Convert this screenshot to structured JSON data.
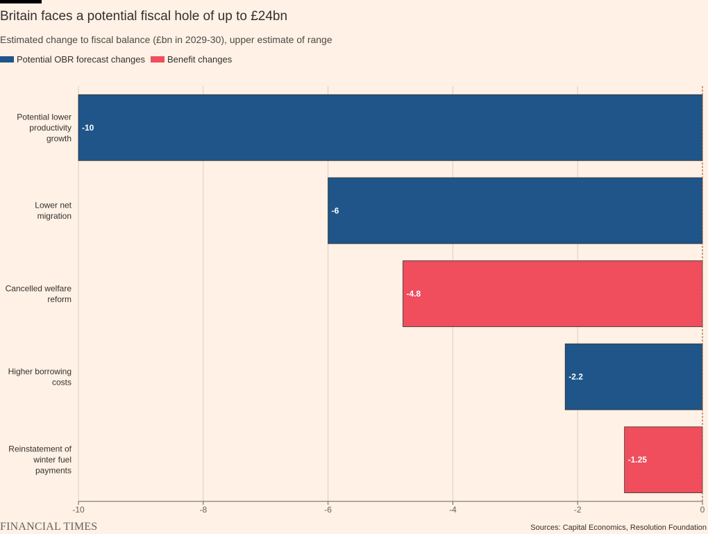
{
  "header": {
    "title": "Britain faces a potential fiscal hole of up to £24bn",
    "subtitle": "Estimated change to fiscal balance (£bn in 2029-30), upper estimate of range"
  },
  "legend": [
    {
      "label": "Potential OBR forecast changes",
      "color": "#1f5588"
    },
    {
      "label": "Benefit changes",
      "color": "#f04d5d"
    }
  ],
  "chart_data": {
    "type": "bar",
    "orientation": "horizontal",
    "categories": [
      "Potential lower productivity growth",
      "Lower net migration",
      "Cancelled welfare reform",
      "Higher borrowing costs",
      "Reinstatement of winter fuel payments"
    ],
    "category_lines": [
      [
        "Potential lower",
        "productivity",
        "growth"
      ],
      [
        "Lower net",
        "migration"
      ],
      [
        "Cancelled welfare",
        "reform"
      ],
      [
        "Higher borrowing",
        "costs"
      ],
      [
        "Reinstatement of",
        "winter fuel",
        "payments"
      ]
    ],
    "values": [
      -10,
      -6,
      -4.8,
      -2.2,
      -1.25
    ],
    "value_labels": [
      "-10",
      "-6",
      "-4.8",
      "-2.2",
      "-1.25"
    ],
    "groups": [
      0,
      0,
      1,
      0,
      1
    ],
    "colors": {
      "0": "#1f5588",
      "1": "#f04d5d"
    },
    "xlim": [
      -10,
      0
    ],
    "xticks": [
      -10,
      -8,
      -6,
      -4,
      -2,
      0
    ],
    "xtick_labels": [
      "-10",
      "-8",
      "-6",
      "-4",
      "-2",
      "0"
    ],
    "grid": true,
    "legend_position": "top-left"
  },
  "footer": {
    "logo": "FINANCIAL TIMES",
    "source": "Sources: Capital Economics, Resolution Foundation"
  }
}
